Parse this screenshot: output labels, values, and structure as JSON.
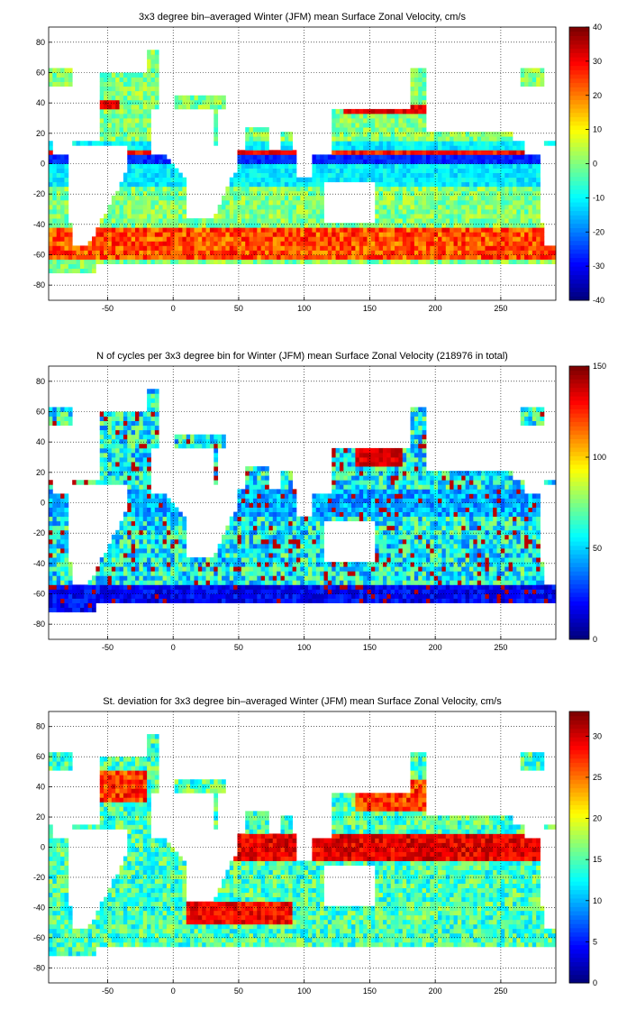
{
  "chart_data": [
    {
      "type": "heatmap",
      "title": "3x3 degree bin–averaged Winter (JFM) mean Surface Zonal Velocity, cm/s",
      "xlim": [
        -95,
        292
      ],
      "ylim": [
        -90,
        90
      ],
      "x_ticks": [
        -50,
        0,
        50,
        100,
        150,
        200,
        250
      ],
      "y_ticks": [
        -80,
        -60,
        -40,
        -20,
        0,
        20,
        40,
        60,
        80
      ],
      "grid": true,
      "colorbar": {
        "min": -40,
        "max": 40,
        "ticks": [
          40,
          30,
          20,
          10,
          0,
          -10,
          -20,
          -30,
          -40
        ],
        "colormap": "jet"
      },
      "field": "zonal_velocity"
    },
    {
      "type": "heatmap",
      "title": "N of cycles per 3x3 degree bin for Winter (JFM) mean Surface Zonal Velocity (218976 in total)",
      "xlim": [
        -95,
        292
      ],
      "ylim": [
        -90,
        90
      ],
      "x_ticks": [
        -50,
        0,
        50,
        100,
        150,
        200,
        250
      ],
      "y_ticks": [
        -80,
        -60,
        -40,
        -20,
        0,
        20,
        40,
        60,
        80
      ],
      "grid": true,
      "colorbar": {
        "min": 0,
        "max": 150,
        "ticks": [
          150,
          100,
          50,
          0
        ],
        "colormap": "jet"
      },
      "field": "cycle_count"
    },
    {
      "type": "heatmap",
      "title": "St. deviation for 3x3 degree bin–averaged Winter (JFM) mean Surface Zonal Velocity, cm/s",
      "xlim": [
        -95,
        292
      ],
      "ylim": [
        -90,
        90
      ],
      "x_ticks": [
        -50,
        0,
        50,
        100,
        150,
        200,
        250
      ],
      "y_ticks": [
        -80,
        -60,
        -40,
        -20,
        0,
        20,
        40,
        60,
        80
      ],
      "grid": true,
      "colorbar": {
        "min": 0,
        "max": 33,
        "ticks": [
          30,
          25,
          20,
          15,
          10,
          5,
          0
        ],
        "colormap": "jet"
      },
      "field": "std_deviation"
    }
  ]
}
